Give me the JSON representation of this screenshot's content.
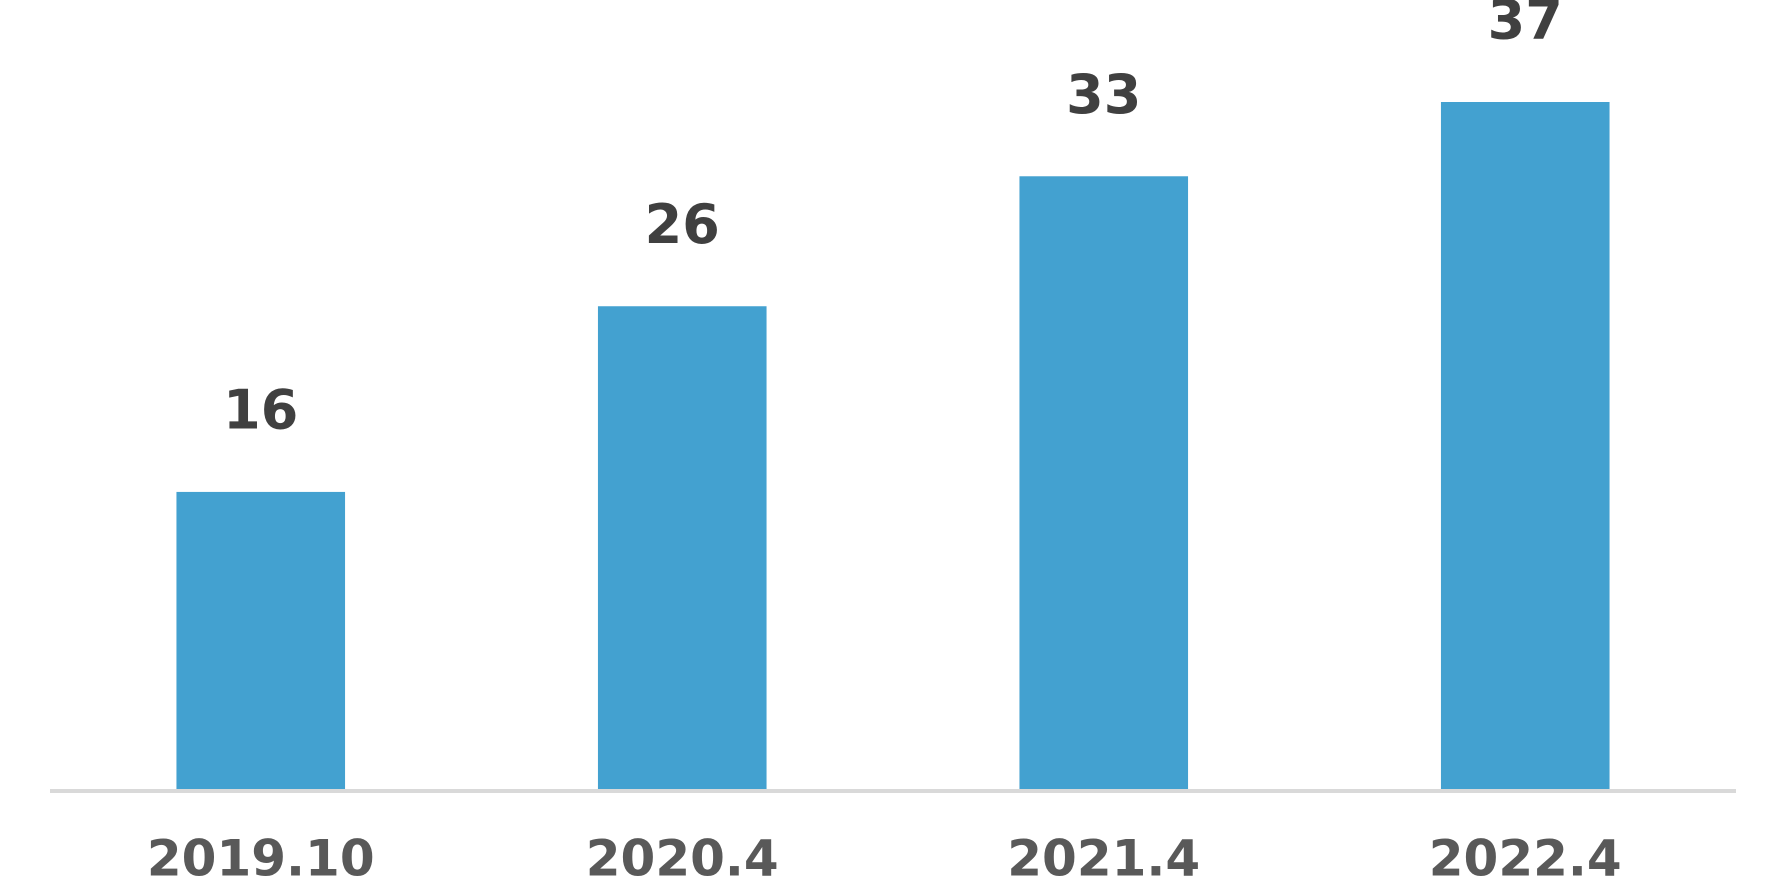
{
  "chart_data": {
    "type": "bar",
    "categories": [
      "2019.10",
      "2020.4",
      "2021.4",
      "2022.4"
    ],
    "values": [
      16,
      26,
      33,
      37
    ],
    "color": "#43a1d0",
    "grid": false
  }
}
